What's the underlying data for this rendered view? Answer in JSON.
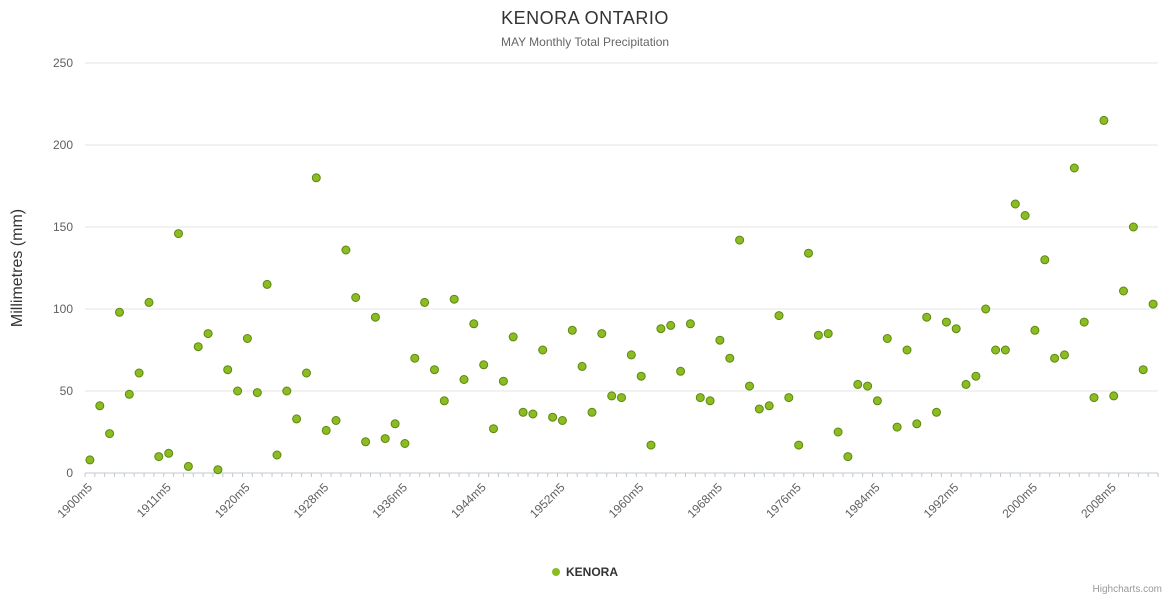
{
  "colors": {
    "point_fill": "#8bbc21",
    "point_stroke": "#5e8712",
    "grid": "#e6e6e6",
    "axis_line": "#c0c8d0",
    "title_text": "#333333",
    "subtitle_text": "#666666",
    "label_text": "#606060",
    "axis_title_text": "#333333"
  },
  "credits": {
    "label": "Highcharts.com"
  },
  "chart_data": {
    "type": "scatter",
    "title": "KENORA ONTARIO",
    "subtitle": "MAY Monthly Total Precipitation",
    "xlabel": "",
    "ylabel": "Millimetres (mm)",
    "ylim": [
      0,
      250
    ],
    "ytick_interval": 50,
    "grid": "horizontal",
    "legend_position": "bottom",
    "xtick_label_every": 8,
    "xtick_labels": [
      "1900m5",
      "1911m5",
      "1920m5",
      "1928m5",
      "1936m5",
      "1944m5",
      "1952m5",
      "1960m5",
      "1968m5",
      "1976m5",
      "1984m5",
      "1992m5",
      "2000m5",
      "2008m5"
    ],
    "categories": [
      "1900m5",
      "1901m5",
      "1902m5",
      "1904m5",
      "1906m5",
      "1908m5",
      "1909m5",
      "1910m5",
      "1911m5",
      "1912m5",
      "1914m5",
      "1915m5",
      "1916m5",
      "1917m5",
      "1918m5",
      "1919m5",
      "1920m5",
      "1921m5",
      "1922m5",
      "1923m5",
      "1924m5",
      "1925m5",
      "1926m5",
      "1927m5",
      "1928m5",
      "1929m5",
      "1930m5",
      "1931m5",
      "1932m5",
      "1933m5",
      "1934m5",
      "1935m5",
      "1936m5",
      "1937m5",
      "1938m5",
      "1939m5",
      "1940m5",
      "1941m5",
      "1942m5",
      "1943m5",
      "1944m5",
      "1945m5",
      "1946m5",
      "1947m5",
      "1948m5",
      "1949m5",
      "1950m5",
      "1951m5",
      "1952m5",
      "1953m5",
      "1954m5",
      "1955m5",
      "1956m5",
      "1957m5",
      "1958m5",
      "1959m5",
      "1960m5",
      "1961m5",
      "1962m5",
      "1963m5",
      "1964m5",
      "1965m5",
      "1966m5",
      "1967m5",
      "1968m5",
      "1969m5",
      "1970m5",
      "1971m5",
      "1972m5",
      "1973m5",
      "1974m5",
      "1975m5",
      "1976m5",
      "1977m5",
      "1978m5",
      "1979m5",
      "1980m5",
      "1981m5",
      "1982m5",
      "1983m5",
      "1984m5",
      "1985m5",
      "1986m5",
      "1987m5",
      "1988m5",
      "1989m5",
      "1990m5",
      "1991m5",
      "1992m5",
      "1993m5",
      "1994m5",
      "1995m5",
      "1996m5",
      "1997m5",
      "1998m5",
      "1999m5",
      "2000m5",
      "2001m5",
      "2002m5",
      "2003m5",
      "2004m5",
      "2005m5",
      "2006m5",
      "2007m5",
      "2008m5",
      "2009m5",
      "2010m5",
      "2011m5",
      "2012m5"
    ],
    "series": [
      {
        "name": "KENORA",
        "values": [
          8,
          41,
          24,
          98,
          48,
          61,
          104,
          10,
          12,
          146,
          4,
          77,
          85,
          2,
          63,
          50,
          82,
          49,
          115,
          11,
          50,
          33,
          61,
          180,
          26,
          32,
          136,
          107,
          19,
          95,
          21,
          30,
          18,
          70,
          104,
          63,
          44,
          106,
          57,
          91,
          66,
          27,
          56,
          83,
          37,
          36,
          75,
          34,
          32,
          87,
          65,
          37,
          85,
          47,
          46,
          72,
          59,
          17,
          88,
          90,
          62,
          91,
          46,
          44,
          81,
          70,
          142,
          53,
          39,
          41,
          96,
          46,
          17,
          134,
          84,
          85,
          25,
          10,
          54,
          53,
          44,
          82,
          28,
          75,
          30,
          95,
          37,
          92,
          88,
          54,
          59,
          100,
          75,
          75,
          164,
          157,
          87,
          130,
          70,
          72,
          186,
          92,
          46,
          215,
          47,
          111,
          150,
          63,
          103
        ]
      }
    ]
  }
}
